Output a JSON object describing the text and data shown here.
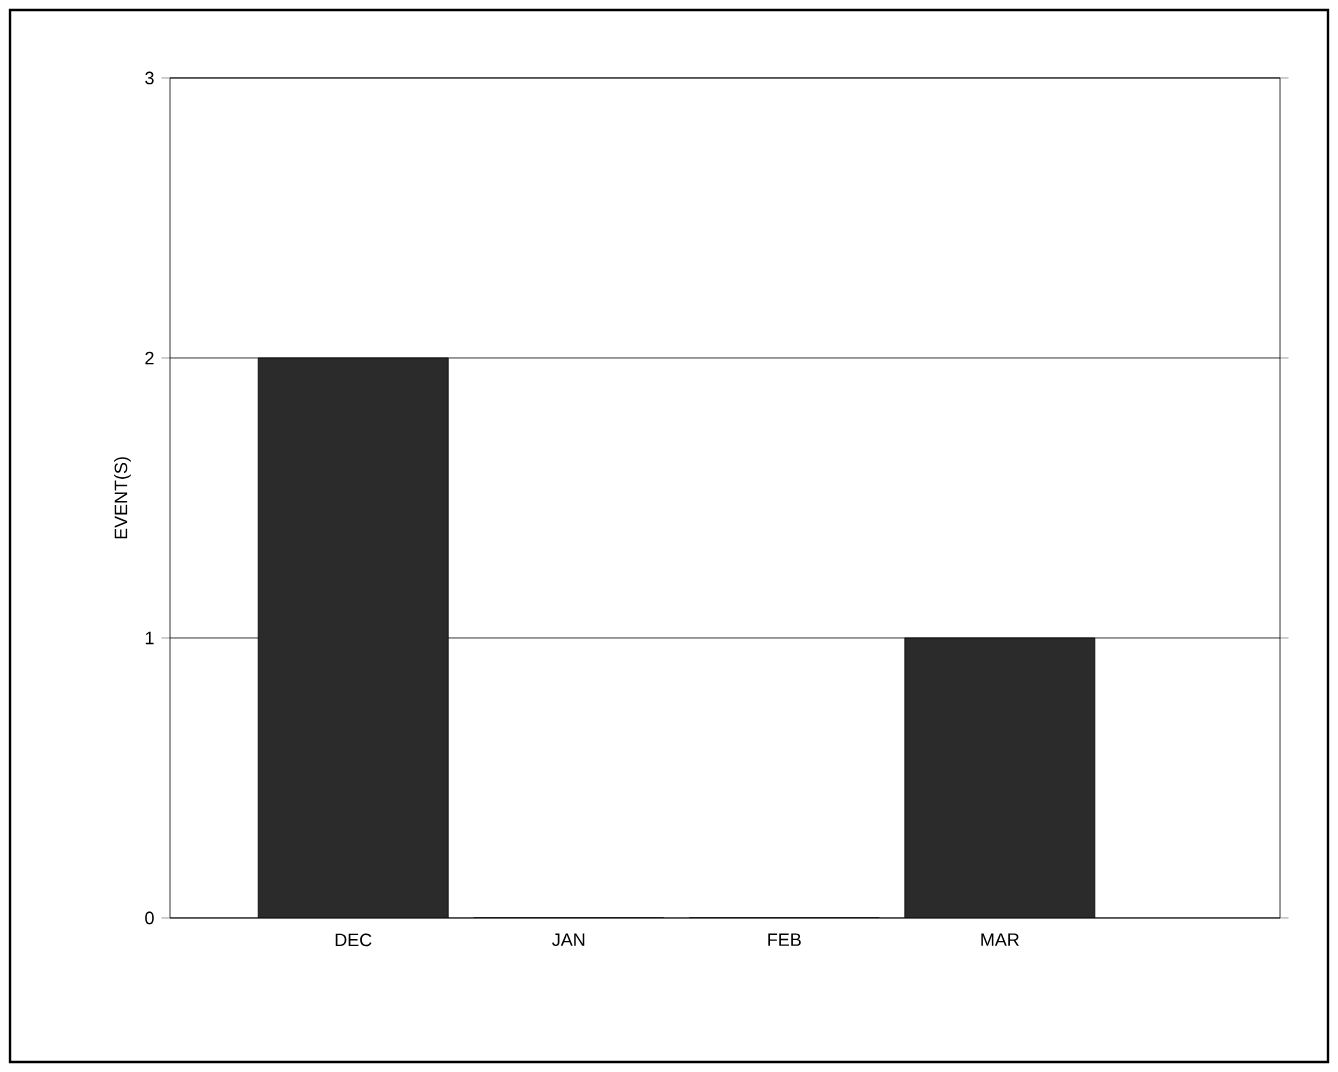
{
  "chart_data": {
    "type": "bar",
    "ylabel": "EVENT(S)",
    "categories": [
      "DEC",
      "JAN",
      "FEB",
      "MAR"
    ],
    "values": [
      2,
      0,
      0,
      1
    ],
    "color": "#2b2b2b",
    "ylim": [
      0,
      3
    ],
    "yticks": [
      0,
      1,
      2,
      3
    ],
    "grid": "y"
  }
}
